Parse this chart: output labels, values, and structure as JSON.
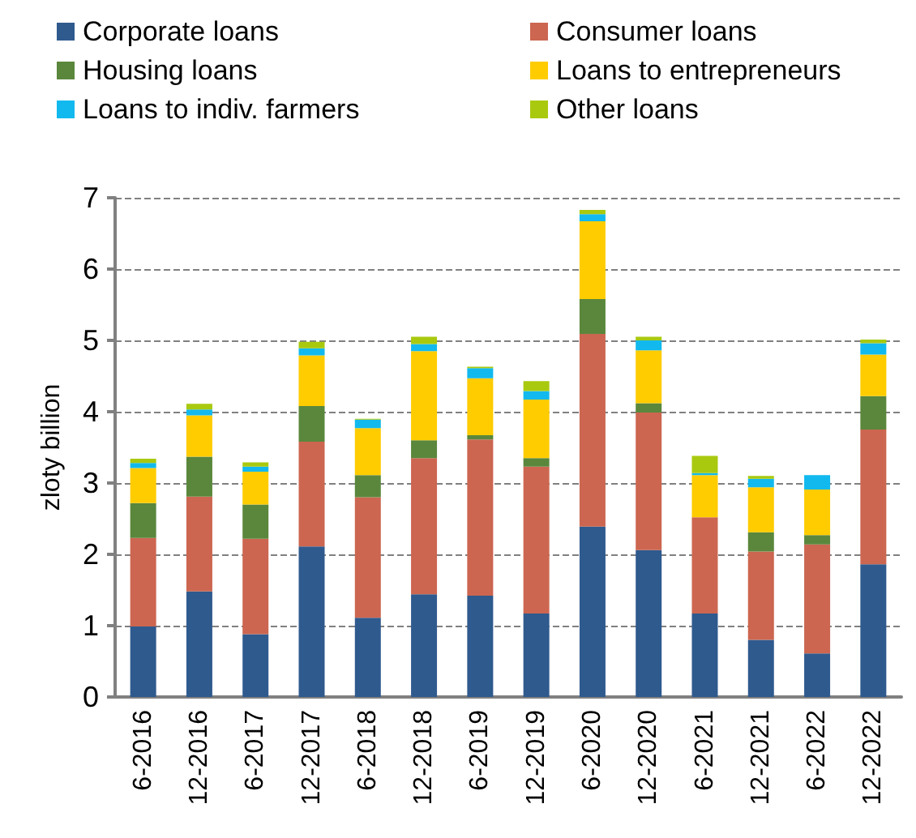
{
  "chart_data": {
    "type": "bar",
    "stacked": true,
    "ylabel": "zloty billion",
    "categories": [
      "6-2016",
      "12-2016",
      "6-2017",
      "12-2017",
      "6-2018",
      "12-2018",
      "6-2019",
      "12-2019",
      "6-2020",
      "12-2020",
      "6-2021",
      "12-2021",
      "6-2022",
      "12-2022"
    ],
    "series": [
      {
        "name": "Corporate loans",
        "color": "#2f5a8e",
        "values": [
          0.99,
          1.48,
          0.88,
          2.11,
          1.11,
          1.44,
          1.42,
          1.17,
          2.39,
          2.06,
          1.17,
          0.8,
          0.61,
          1.86
        ]
      },
      {
        "name": "Consumer loans",
        "color": "#cc6650",
        "values": [
          1.24,
          1.33,
          1.34,
          1.47,
          1.69,
          1.91,
          2.19,
          2.06,
          2.7,
          1.93,
          1.35,
          1.24,
          1.53,
          1.89
        ]
      },
      {
        "name": "Housing loans",
        "color": "#5a873c",
        "values": [
          0.49,
          0.56,
          0.48,
          0.5,
          0.31,
          0.25,
          0.06,
          0.12,
          0.49,
          0.13,
          0,
          0.27,
          0.13,
          0.47
        ]
      },
      {
        "name": "Loans to entrepreneurs",
        "color": "#ffcc00",
        "values": [
          0.49,
          0.58,
          0.46,
          0.71,
          0.66,
          1.25,
          0.8,
          0.82,
          1.09,
          0.74,
          0.59,
          0.63,
          0.64,
          0.58
        ]
      },
      {
        "name": "Loans to indiv. farmers",
        "color": "#12b9ee",
        "values": [
          0.07,
          0.08,
          0.07,
          0.1,
          0.12,
          0.1,
          0.14,
          0.12,
          0.1,
          0.14,
          0.03,
          0.12,
          0.2,
          0.16
        ]
      },
      {
        "name": "Other loans",
        "color": "#a9c90f",
        "values": [
          0.06,
          0.08,
          0.06,
          0.09,
          0.01,
          0.1,
          0.02,
          0.14,
          0.06,
          0.05,
          0.24,
          0.04,
          0,
          0.05
        ]
      }
    ],
    "ylim": [
      0,
      7
    ],
    "yticks": [
      0,
      1,
      2,
      3,
      4,
      5,
      6,
      7
    ],
    "grid": "y",
    "legend": "top"
  }
}
